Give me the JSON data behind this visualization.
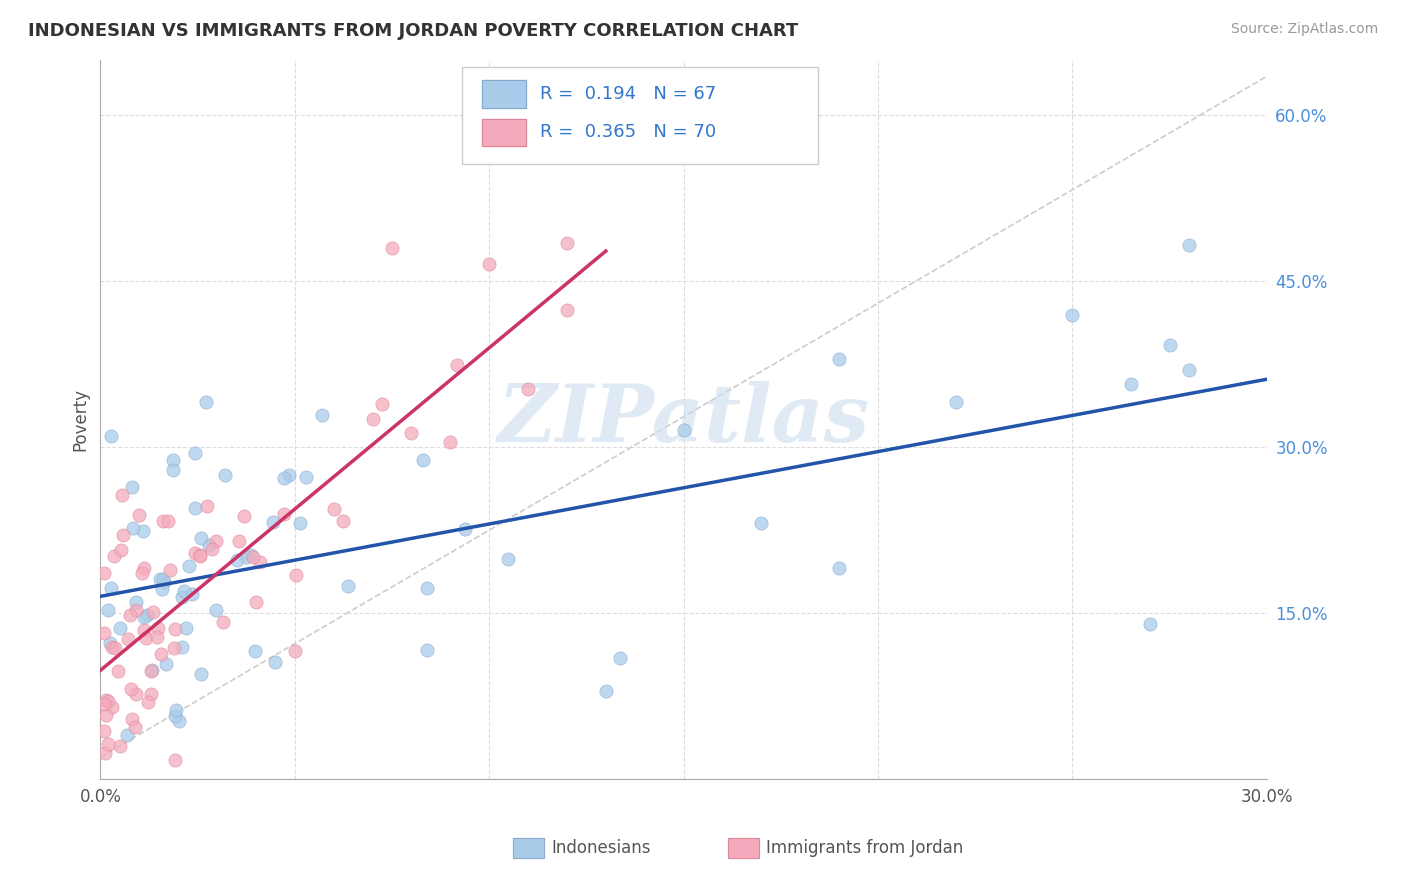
{
  "title": "INDONESIAN VS IMMIGRANTS FROM JORDAN POVERTY CORRELATION CHART",
  "source": "Source: ZipAtlas.com",
  "ylabel": "Poverty",
  "xlim": [
    0.0,
    0.3
  ],
  "ylim": [
    0.0,
    0.65
  ],
  "xticks": [
    0.0,
    0.05,
    0.1,
    0.15,
    0.2,
    0.25,
    0.3
  ],
  "xticklabels": [
    "0.0%",
    "",
    "",
    "",
    "",
    "",
    "30.0%"
  ],
  "yticks": [
    0.0,
    0.15,
    0.3,
    0.45,
    0.6
  ],
  "yticklabels": [
    "",
    "15.0%",
    "30.0%",
    "45.0%",
    "60.0%"
  ],
  "r_indonesian": 0.194,
  "n_indonesian": 67,
  "r_jordan": 0.365,
  "n_jordan": 70,
  "blue_color": "#A8CCEA",
  "pink_color": "#F4AABC",
  "blue_line_color": "#2255AA",
  "pink_line_color": "#CC3366",
  "diag_color": "#CCCCCC",
  "watermark": "ZIPatlas",
  "title_color": "#333333",
  "source_color": "#999999",
  "ylabel_color": "#555555",
  "tick_color_x": "#555555",
  "tick_color_y": "#4A90D9",
  "grid_color": "#DDDDDD",
  "legend_border_color": "#CCCCCC"
}
